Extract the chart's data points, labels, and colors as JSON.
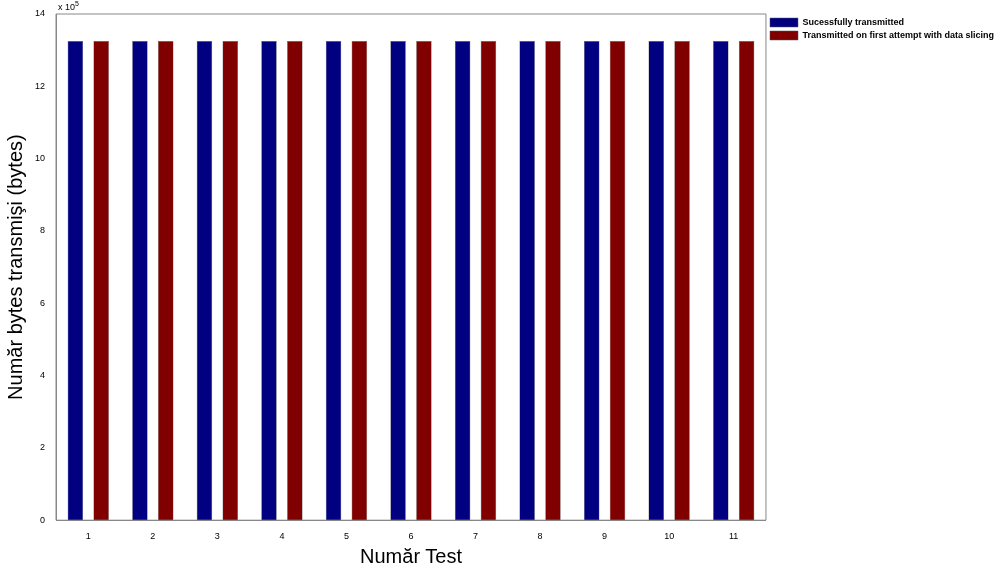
{
  "chart_data": {
    "type": "bar",
    "xlabel": "Număr Test",
    "ylabel": "Număr bytes transmişi (bytes)",
    "categories": [
      "1",
      "2",
      "3",
      "4",
      "5",
      "6",
      "7",
      "8",
      "9",
      "10",
      "11"
    ],
    "series": [
      {
        "name": "Sucessfully transmitted",
        "color": "#000080",
        "values": [
          13.25,
          13.25,
          13.25,
          13.25,
          13.25,
          13.25,
          13.25,
          13.25,
          13.25,
          13.25,
          13.25
        ]
      },
      {
        "name": "Transmitted on first attempt with data slicing",
        "color": "#800000",
        "values": [
          13.25,
          13.25,
          13.25,
          13.25,
          13.25,
          13.25,
          13.25,
          13.25,
          13.25,
          13.25,
          13.25
        ]
      }
    ],
    "ylim": [
      0,
      14
    ],
    "yticks": [
      0,
      2,
      4,
      6,
      8,
      10,
      12,
      14
    ],
    "annotations": [
      "x 10$^{5}$"
    ],
    "grid": false,
    "legend": "top right"
  }
}
